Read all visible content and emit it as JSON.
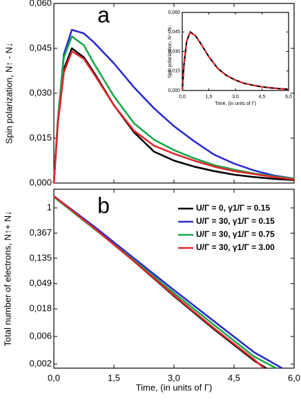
{
  "chart_data": [
    {
      "type": "line",
      "label": "a",
      "ylabel": "Spin polarization, N↑ - N↓",
      "x": [
        0,
        0.1,
        0.25,
        0.45,
        0.75,
        1,
        1.5,
        2,
        2.5,
        3,
        3.5,
        4,
        4.5,
        5,
        5.5,
        6
      ],
      "xlim": [
        0,
        6
      ],
      "xticks": [
        0,
        1.5,
        3,
        4.5,
        6
      ],
      "ylim": [
        0,
        0.06
      ],
      "yticks": [
        {
          "value": 0,
          "label": "0,000"
        },
        {
          "value": 0.015,
          "label": "0,015"
        },
        {
          "value": 0.03,
          "label": "0,030"
        },
        {
          "value": 0.045,
          "label": "0,045"
        },
        {
          "value": 0.06,
          "label": "0,060"
        }
      ],
      "series": [
        {
          "color": "#000000",
          "values": [
            0,
            0.02,
            0.038,
            0.045,
            0.042,
            0.037,
            0.026,
            0.017,
            0.0105,
            0.0075,
            0.0055,
            0.004,
            0.0028,
            0.002,
            0.0014,
            0.001
          ]
        },
        {
          "color": "#2b2bd0",
          "values": [
            0,
            0.021,
            0.043,
            0.0512,
            0.05,
            0.047,
            0.04,
            0.032,
            0.025,
            0.019,
            0.014,
            0.0095,
            0.0065,
            0.0042,
            0.0025,
            0.0015
          ]
        },
        {
          "color": "#17a84a",
          "values": [
            0,
            0.021,
            0.042,
            0.049,
            0.046,
            0.04,
            0.029,
            0.02,
            0.0145,
            0.011,
            0.0083,
            0.006,
            0.0045,
            0.0032,
            0.0022,
            0.0015
          ]
        },
        {
          "color": "#e0262a",
          "values": [
            0,
            0.02,
            0.037,
            0.044,
            0.0415,
            0.0365,
            0.026,
            0.0175,
            0.0125,
            0.0098,
            0.0075,
            0.0055,
            0.004,
            0.003,
            0.002,
            0.0012
          ]
        }
      ]
    },
    {
      "type": "line",
      "label": "b",
      "log_y": true,
      "legend": "upper right",
      "xlabel": "Time, (in units of Γ)",
      "ylabel": "Total number of electrons, N↑+ N↓",
      "xlim": [
        0,
        6
      ],
      "xticks": [
        {
          "value": 0,
          "label": "0,0"
        },
        {
          "value": 1.5,
          "label": "1,5"
        },
        {
          "value": 3,
          "label": "3,0"
        },
        {
          "value": 4.5,
          "label": "4,5"
        },
        {
          "value": 6,
          "label": "6,0"
        }
      ],
      "ylim": [
        0.0017,
        2.1
      ],
      "yticks": [
        1,
        {
          "value": 0.367,
          "label": "0,367"
        },
        {
          "value": 0.135,
          "label": "0,135"
        },
        {
          "value": 0.049,
          "label": "0,049"
        },
        {
          "value": 0.018,
          "label": "0,018"
        },
        {
          "value": 0.006,
          "label": "0,006"
        },
        {
          "value": 0.002,
          "label": "0,002"
        }
      ],
      "series": [
        {
          "name": "U/Γ = 0,  γ1/Γ = 0.15",
          "color": "#000000",
          "x": [
            0,
            1,
            2,
            3,
            4,
            5,
            5.3
          ],
          "values": [
            1.6,
            0.45,
            0.12,
            0.03,
            0.008,
            0.0023,
            0.0017
          ]
        },
        {
          "name": "U/Γ = 30, γ1/Γ = 0.15",
          "color": "#2b2bd0",
          "x": [
            0,
            1,
            2,
            3,
            4,
            5,
            5.7
          ],
          "values": [
            1.6,
            0.48,
            0.135,
            0.038,
            0.011,
            0.0032,
            0.0017
          ]
        },
        {
          "name": "U/Γ = 30, γ1/Γ = 0.75",
          "color": "#17a84a",
          "x": [
            0,
            1,
            2,
            3,
            4,
            5,
            5.55
          ],
          "values": [
            1.55,
            0.44,
            0.125,
            0.034,
            0.0095,
            0.0027,
            0.0017
          ]
        },
        {
          "name": "U/Γ = 30, γ1/Γ = 3.00",
          "color": "#e0262a",
          "x": [
            0,
            1,
            2,
            3,
            4,
            5,
            5.25
          ],
          "values": [
            1.6,
            0.45,
            0.12,
            0.031,
            0.0083,
            0.0024,
            0.0017
          ]
        }
      ]
    },
    {
      "type": "line",
      "xlabel": "Time, (in units of Γ)",
      "ylabel": "Spin polarization, N↑- N↓",
      "x": [
        0,
        0.1,
        0.25,
        0.45,
        0.75,
        1,
        1.5,
        2,
        2.5,
        3,
        3.5,
        4,
        4.5,
        5,
        5.5,
        6
      ],
      "xlim": [
        0,
        6
      ],
      "xticks": [
        {
          "value": 0,
          "label": "0,0"
        },
        {
          "value": 1.5,
          "label": "1,5"
        },
        {
          "value": 3,
          "label": "3,0"
        },
        {
          "value": 4.5,
          "label": "4,5"
        },
        {
          "value": 6,
          "label": "6,0"
        }
      ],
      "ylim": [
        0,
        0.06
      ],
      "yticks": [
        {
          "value": 0,
          "label": "0,000"
        },
        {
          "value": 0.015,
          "label": "0,015"
        },
        {
          "value": 0.03,
          "label": "0,030"
        },
        {
          "value": 0.045,
          "label": "0,045"
        },
        {
          "value": 0.06,
          "label": "0,060"
        }
      ],
      "series": [
        {
          "color": "#000000",
          "values": [
            0,
            0.02,
            0.038,
            0.045,
            0.042,
            0.037,
            0.026,
            0.017,
            0.0115,
            0.008,
            0.0055,
            0.004,
            0.0028,
            0.002,
            0.0014,
            0.001
          ]
        },
        {
          "color": "#e0262a",
          "dashed": true,
          "values": [
            0,
            0.02,
            0.038,
            0.045,
            0.042,
            0.037,
            0.026,
            0.017,
            0.0115,
            0.008,
            0.0055,
            0.004,
            0.0028,
            0.002,
            0.0014,
            0.001
          ]
        }
      ]
    }
  ]
}
